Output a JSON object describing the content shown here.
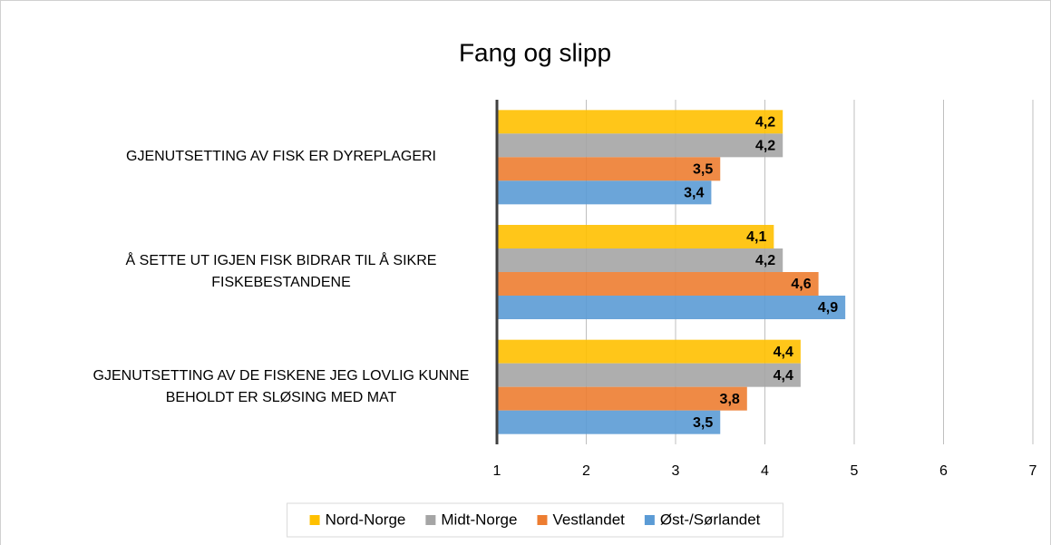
{
  "chart_data": {
    "type": "hbar",
    "title": "Fang og slipp",
    "categories": [
      "GJENUTSETTING AV FISK ER DYREPLAGERI",
      "Å SETTE UT IGJEN FISK BIDRAR TIL Å SIKRE\nFISKEBESTANDENE",
      "GJENUTSETTING AV DE FISKENE JEG LOVLIG KUNNE\nBEHOLDT ER SLØSING MED MAT"
    ],
    "series": [
      {
        "name": "Nord-Norge",
        "color": "#ffc000",
        "values": [
          4.2,
          4.1,
          4.4
        ],
        "value_labels": [
          "4,2",
          "4,1",
          "4,4"
        ]
      },
      {
        "name": "Midt-Norge",
        "color": "#a5a5a5",
        "values": [
          4.2,
          4.2,
          4.4
        ],
        "value_labels": [
          "4,2",
          "4,2",
          "4,4"
        ]
      },
      {
        "name": "Vestlandet",
        "color": "#ed7d31",
        "values": [
          3.5,
          4.6,
          3.8
        ],
        "value_labels": [
          "3,5",
          "4,6",
          "3,8"
        ]
      },
      {
        "name": "Øst-/Sørlandet",
        "color": "#5b9bd5",
        "values": [
          3.4,
          4.9,
          3.5
        ],
        "value_labels": [
          "3,4",
          "4,9",
          "3,5"
        ]
      }
    ],
    "xlim": [
      1,
      7
    ],
    "xticks": [
      1,
      2,
      3,
      4,
      5,
      6,
      7
    ],
    "grid": true,
    "legend": "bottom"
  }
}
